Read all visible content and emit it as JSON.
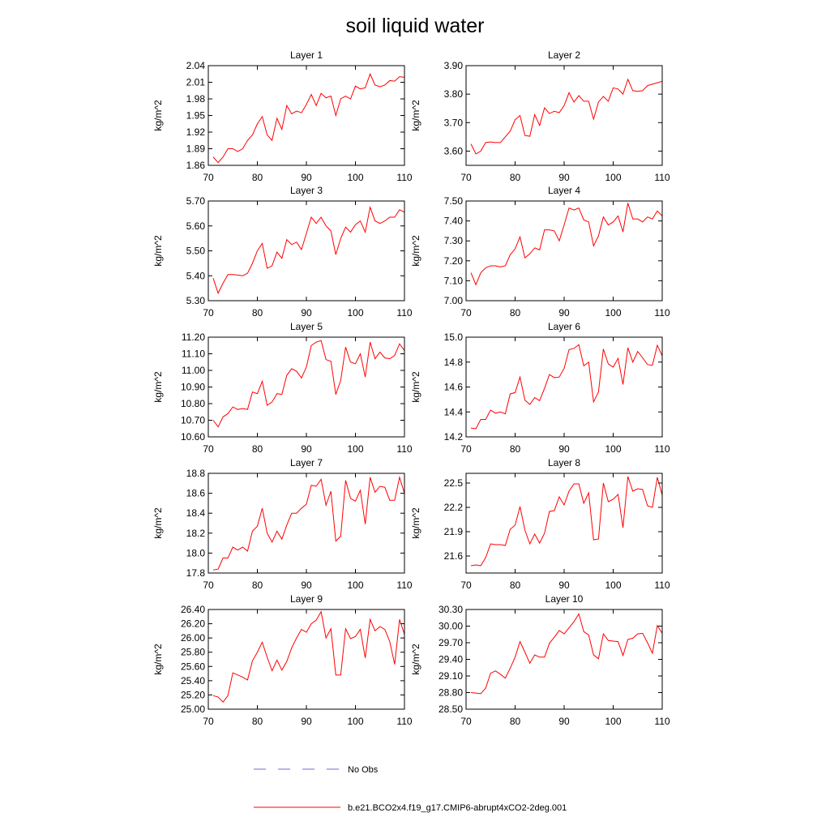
{
  "title": "soil liquid water",
  "legend": [
    {
      "name": "No Obs",
      "color": "#6b6bd6",
      "dash": true
    },
    {
      "name": "b.e21.BCO2x4.f19_g17.CMIP6-abrupt4xCO2-2deg.001",
      "color": "#ff0000",
      "dash": false
    }
  ],
  "chart_data": [
    {
      "type": "line",
      "title": "Layer 1",
      "y_label": "kg/m^2",
      "color": "#ff0000",
      "x": [
        71,
        72,
        73,
        74,
        75,
        76,
        77,
        78,
        79,
        80,
        81,
        82,
        83,
        84,
        85,
        86,
        87,
        88,
        89,
        90,
        91,
        92,
        93,
        94,
        95,
        96,
        97,
        98,
        99,
        100,
        101,
        102,
        103,
        104,
        105,
        106,
        107,
        108,
        109,
        110
      ],
      "values": [
        1.875,
        1.865,
        1.875,
        1.89,
        1.89,
        1.885,
        1.89,
        1.905,
        1.915,
        1.935,
        1.948,
        1.915,
        1.905,
        1.945,
        1.925,
        1.968,
        1.953,
        1.958,
        1.955,
        1.97,
        1.988,
        1.968,
        1.99,
        1.982,
        1.985,
        1.95,
        1.98,
        1.985,
        1.98,
        2.003,
        1.998,
        2.0,
        2.025,
        2.005,
        2.002,
        2.005,
        2.013,
        2.012,
        2.02,
        2.019
      ],
      "xlim": [
        70,
        110
      ],
      "xticks": [
        70,
        80,
        90,
        100,
        110
      ],
      "ylim": [
        1.86,
        2.04
      ],
      "yticks": [
        1.86,
        1.89,
        1.92,
        1.95,
        1.98,
        2.01,
        2.04
      ]
    },
    {
      "type": "line",
      "title": "Layer 2",
      "y_label": "kg/m^2",
      "color": "#ff0000",
      "x": [
        71,
        72,
        73,
        74,
        75,
        76,
        77,
        78,
        79,
        80,
        81,
        82,
        83,
        84,
        85,
        86,
        87,
        88,
        89,
        90,
        91,
        92,
        93,
        94,
        95,
        96,
        97,
        98,
        99,
        100,
        101,
        102,
        103,
        104,
        105,
        106,
        107,
        108,
        109,
        110
      ],
      "values": [
        3.625,
        3.59,
        3.6,
        3.63,
        3.632,
        3.63,
        3.63,
        3.65,
        3.67,
        3.71,
        3.725,
        3.655,
        3.652,
        3.728,
        3.69,
        3.752,
        3.732,
        3.74,
        3.735,
        3.76,
        3.805,
        3.772,
        3.795,
        3.775,
        3.775,
        3.712,
        3.772,
        3.792,
        3.775,
        3.822,
        3.818,
        3.8,
        3.852,
        3.812,
        3.81,
        3.812,
        3.83,
        3.835,
        3.84,
        3.845
      ],
      "xlim": [
        70,
        110
      ],
      "xticks": [
        70,
        80,
        90,
        100,
        110
      ],
      "ylim": [
        3.55,
        3.9
      ],
      "yticks": [
        {
          "value": 3.6,
          "label": "3.60"
        },
        {
          "value": 3.7,
          "label": "3.70"
        },
        {
          "value": 3.8,
          "label": "3.80"
        },
        {
          "value": 3.9,
          "label": "3.90"
        }
      ]
    },
    {
      "type": "line",
      "title": "Layer 3",
      "y_label": "kg/m^2",
      "color": "#ff0000",
      "x": [
        71,
        72,
        73,
        74,
        75,
        76,
        77,
        78,
        79,
        80,
        81,
        82,
        83,
        84,
        85,
        86,
        87,
        88,
        89,
        90,
        91,
        92,
        93,
        94,
        95,
        96,
        97,
        98,
        99,
        100,
        101,
        102,
        103,
        104,
        105,
        106,
        107,
        108,
        109,
        110
      ],
      "values": [
        5.39,
        5.33,
        5.37,
        5.405,
        5.405,
        5.403,
        5.4,
        5.41,
        5.45,
        5.5,
        5.53,
        5.43,
        5.44,
        5.495,
        5.47,
        5.545,
        5.525,
        5.535,
        5.505,
        5.57,
        5.635,
        5.61,
        5.635,
        5.6,
        5.58,
        5.485,
        5.55,
        5.595,
        5.575,
        5.605,
        5.62,
        5.575,
        5.675,
        5.62,
        5.61,
        5.62,
        5.635,
        5.635,
        5.665,
        5.655
      ],
      "xlim": [
        70,
        110
      ],
      "xticks": [
        70,
        80,
        90,
        100,
        110
      ],
      "ylim": [
        5.3,
        5.7
      ],
      "yticks": [
        {
          "value": 5.3,
          "label": "5.30"
        },
        {
          "value": 5.4,
          "label": "5.40"
        },
        {
          "value": 5.5,
          "label": "5.50"
        },
        {
          "value": 5.6,
          "label": "5.60"
        },
        {
          "value": 5.7,
          "label": "5.70"
        }
      ]
    },
    {
      "type": "line",
      "title": "Layer 4",
      "y_label": "kg/m^2",
      "color": "#ff0000",
      "x": [
        71,
        72,
        73,
        74,
        75,
        76,
        77,
        78,
        79,
        80,
        81,
        82,
        83,
        84,
        85,
        86,
        87,
        88,
        89,
        90,
        91,
        92,
        93,
        94,
        95,
        96,
        97,
        98,
        99,
        100,
        101,
        102,
        103,
        104,
        105,
        106,
        107,
        108,
        109,
        110
      ],
      "values": [
        7.14,
        7.08,
        7.14,
        7.165,
        7.175,
        7.175,
        7.17,
        7.175,
        7.23,
        7.26,
        7.32,
        7.215,
        7.235,
        7.265,
        7.255,
        7.355,
        7.355,
        7.35,
        7.3,
        7.38,
        7.465,
        7.455,
        7.465,
        7.405,
        7.395,
        7.275,
        7.325,
        7.42,
        7.38,
        7.395,
        7.425,
        7.345,
        7.49,
        7.41,
        7.41,
        7.395,
        7.42,
        7.41,
        7.45,
        7.425
      ],
      "xlim": [
        70,
        110
      ],
      "xticks": [
        70,
        80,
        90,
        100,
        110
      ],
      "ylim": [
        7.0,
        7.5
      ],
      "yticks": [
        {
          "value": 7.0,
          "label": "7.00"
        },
        {
          "value": 7.1,
          "label": "7.10"
        },
        {
          "value": 7.2,
          "label": "7.20"
        },
        {
          "value": 7.3,
          "label": "7.30"
        },
        {
          "value": 7.4,
          "label": "7.40"
        },
        {
          "value": 7.5,
          "label": "7.50"
        }
      ]
    },
    {
      "type": "line",
      "title": "Layer 5",
      "y_label": "kg/m^2",
      "color": "#ff0000",
      "x": [
        71,
        72,
        73,
        74,
        75,
        76,
        77,
        78,
        79,
        80,
        81,
        82,
        83,
        84,
        85,
        86,
        87,
        88,
        89,
        90,
        91,
        92,
        93,
        94,
        95,
        96,
        97,
        98,
        99,
        100,
        101,
        102,
        103,
        104,
        105,
        106,
        107,
        108,
        109,
        110
      ],
      "values": [
        10.7,
        10.66,
        10.72,
        10.74,
        10.78,
        10.765,
        10.77,
        10.765,
        10.87,
        10.86,
        10.935,
        10.79,
        10.81,
        10.86,
        10.855,
        10.97,
        11.01,
        10.995,
        10.955,
        11.02,
        11.15,
        11.17,
        11.18,
        11.065,
        11.055,
        10.855,
        10.94,
        11.14,
        11.05,
        11.04,
        11.1,
        10.96,
        11.17,
        11.07,
        11.11,
        11.075,
        11.07,
        11.09,
        11.16,
        11.12
      ],
      "xlim": [
        70,
        110
      ],
      "xticks": [
        70,
        80,
        90,
        100,
        110
      ],
      "ylim": [
        10.6,
        11.2
      ],
      "yticks": [
        {
          "value": 10.6,
          "label": "10.60"
        },
        {
          "value": 10.7,
          "label": "10.70"
        },
        {
          "value": 10.8,
          "label": "10.80"
        },
        {
          "value": 10.9,
          "label": "10.90"
        },
        {
          "value": 11.0,
          "label": "11.00"
        },
        {
          "value": 11.1,
          "label": "11.10"
        },
        {
          "value": 11.2,
          "label": "11.20"
        }
      ]
    },
    {
      "type": "line",
      "title": "Layer 6",
      "y_label": "kg/m^2",
      "color": "#ff0000",
      "x": [
        71,
        72,
        73,
        74,
        75,
        76,
        77,
        78,
        79,
        80,
        81,
        82,
        83,
        84,
        85,
        86,
        87,
        88,
        89,
        90,
        91,
        92,
        93,
        94,
        95,
        96,
        97,
        98,
        99,
        100,
        101,
        102,
        103,
        104,
        105,
        106,
        107,
        108,
        109,
        110
      ],
      "values": [
        14.27,
        14.265,
        14.34,
        14.34,
        14.415,
        14.39,
        14.4,
        14.385,
        14.545,
        14.555,
        14.68,
        14.495,
        14.46,
        14.515,
        14.49,
        14.59,
        14.7,
        14.675,
        14.68,
        14.75,
        14.9,
        14.91,
        14.94,
        14.77,
        14.8,
        14.48,
        14.56,
        14.905,
        14.785,
        14.76,
        14.83,
        14.62,
        14.915,
        14.8,
        14.885,
        14.835,
        14.78,
        14.775,
        14.935,
        14.85
      ],
      "xlim": [
        70,
        110
      ],
      "xticks": [
        70,
        80,
        90,
        100,
        110
      ],
      "ylim": [
        14.2,
        15.0
      ],
      "yticks": [
        14.2,
        14.4,
        14.6,
        14.8,
        {
          "value": 15.0,
          "label": "15.0"
        }
      ]
    },
    {
      "type": "line",
      "title": "Layer 7",
      "y_label": "kg/m^2",
      "color": "#ff0000",
      "x": [
        71,
        72,
        73,
        74,
        75,
        76,
        77,
        78,
        79,
        80,
        81,
        82,
        83,
        84,
        85,
        86,
        87,
        88,
        89,
        90,
        91,
        92,
        93,
        94,
        95,
        96,
        97,
        98,
        99,
        100,
        101,
        102,
        103,
        104,
        105,
        106,
        107,
        108,
        109,
        110
      ],
      "values": [
        17.83,
        17.84,
        17.95,
        17.95,
        18.06,
        18.03,
        18.06,
        18.02,
        18.22,
        18.27,
        18.45,
        18.2,
        18.11,
        18.22,
        18.14,
        18.28,
        18.4,
        18.4,
        18.45,
        18.49,
        18.68,
        18.67,
        18.74,
        18.48,
        18.62,
        18.12,
        18.17,
        18.73,
        18.55,
        18.52,
        18.63,
        18.29,
        18.76,
        18.61,
        18.67,
        18.66,
        18.53,
        18.53,
        18.76,
        18.6
      ],
      "xlim": [
        70,
        110
      ],
      "xticks": [
        70,
        80,
        90,
        100,
        110
      ],
      "ylim": [
        17.8,
        18.8
      ],
      "yticks": [
        17.8,
        {
          "value": 18.0,
          "label": "18.0"
        },
        18.2,
        18.4,
        18.6,
        18.8
      ]
    },
    {
      "type": "line",
      "title": "Layer 8",
      "y_label": "kg/m^2",
      "color": "#ff0000",
      "x": [
        71,
        72,
        73,
        74,
        75,
        76,
        77,
        78,
        79,
        80,
        81,
        82,
        83,
        84,
        85,
        86,
        87,
        88,
        89,
        90,
        91,
        92,
        93,
        94,
        95,
        96,
        97,
        98,
        99,
        100,
        101,
        102,
        103,
        104,
        105,
        106,
        107,
        108,
        109,
        110
      ],
      "values": [
        21.48,
        21.49,
        21.48,
        21.58,
        21.75,
        21.74,
        21.74,
        21.73,
        21.93,
        21.98,
        22.21,
        21.92,
        21.75,
        21.87,
        21.76,
        21.88,
        22.15,
        22.16,
        22.33,
        22.23,
        22.4,
        22.49,
        22.49,
        22.25,
        22.38,
        21.8,
        21.81,
        22.5,
        22.27,
        22.3,
        22.36,
        21.95,
        22.58,
        22.4,
        22.43,
        22.42,
        22.22,
        22.2,
        22.57,
        22.35
      ],
      "xlim": [
        70,
        110
      ],
      "xticks": [
        70,
        80,
        90,
        100,
        110
      ],
      "ylim": [
        21.39,
        22.62
      ],
      "yticks": [
        21.6,
        21.9,
        22.2,
        22.5
      ]
    },
    {
      "type": "line",
      "title": "Layer 9",
      "y_label": "kg/m^2",
      "color": "#ff0000",
      "x": [
        71,
        72,
        73,
        74,
        75,
        76,
        77,
        78,
        79,
        80,
        81,
        82,
        83,
        84,
        85,
        86,
        87,
        88,
        89,
        90,
        91,
        92,
        93,
        94,
        95,
        96,
        97,
        98,
        99,
        100,
        101,
        102,
        103,
        104,
        105,
        106,
        107,
        108,
        109,
        110
      ],
      "values": [
        25.19,
        25.17,
        25.1,
        25.19,
        25.51,
        25.48,
        25.45,
        25.41,
        25.68,
        25.8,
        25.94,
        25.73,
        25.54,
        25.69,
        25.55,
        25.67,
        25.86,
        26.0,
        26.12,
        26.08,
        26.2,
        26.25,
        26.37,
        26.0,
        26.13,
        25.48,
        25.48,
        26.13,
        25.99,
        26.02,
        26.12,
        25.72,
        26.26,
        26.1,
        26.16,
        26.12,
        25.95,
        25.63,
        26.26,
        26.05
      ],
      "xlim": [
        70,
        110
      ],
      "xticks": [
        70,
        80,
        90,
        100,
        110
      ],
      "ylim": [
        25.0,
        26.4
      ],
      "yticks": [
        {
          "value": 25.0,
          "label": "25.00"
        },
        {
          "value": 25.2,
          "label": "25.20"
        },
        {
          "value": 25.4,
          "label": "25.40"
        },
        {
          "value": 25.6,
          "label": "25.60"
        },
        {
          "value": 25.8,
          "label": "25.80"
        },
        {
          "value": 26.0,
          "label": "26.00"
        },
        {
          "value": 26.2,
          "label": "26.20"
        },
        {
          "value": 26.4,
          "label": "26.40"
        }
      ]
    },
    {
      "type": "line",
      "title": "Layer 10",
      "y_label": "kg/m^2",
      "color": "#ff0000",
      "x": [
        71,
        72,
        73,
        74,
        75,
        76,
        77,
        78,
        79,
        80,
        81,
        82,
        83,
        84,
        85,
        86,
        87,
        88,
        89,
        90,
        91,
        92,
        93,
        94,
        95,
        96,
        97,
        98,
        99,
        100,
        101,
        102,
        103,
        104,
        105,
        106,
        107,
        108,
        109,
        110
      ],
      "values": [
        28.8,
        28.79,
        28.78,
        28.88,
        29.15,
        29.19,
        29.13,
        29.06,
        29.24,
        29.44,
        29.72,
        29.53,
        29.33,
        29.48,
        29.44,
        29.44,
        29.69,
        29.8,
        29.92,
        29.86,
        29.97,
        30.08,
        30.22,
        29.9,
        29.84,
        29.48,
        29.41,
        29.86,
        29.74,
        29.73,
        29.72,
        29.47,
        29.76,
        29.78,
        29.86,
        29.87,
        29.7,
        29.51,
        30.01,
        29.87
      ],
      "xlim": [
        70,
        110
      ],
      "xticks": [
        70,
        80,
        90,
        100,
        110
      ],
      "ylim": [
        28.5,
        30.3
      ],
      "yticks": [
        {
          "value": 28.5,
          "label": "28.50"
        },
        {
          "value": 28.8,
          "label": "28.80"
        },
        {
          "value": 29.1,
          "label": "29.10"
        },
        {
          "value": 29.4,
          "label": "29.40"
        },
        {
          "value": 29.7,
          "label": "29.70"
        },
        {
          "value": 30.0,
          "label": "30.00"
        },
        {
          "value": 30.3,
          "label": "30.30"
        }
      ]
    }
  ]
}
